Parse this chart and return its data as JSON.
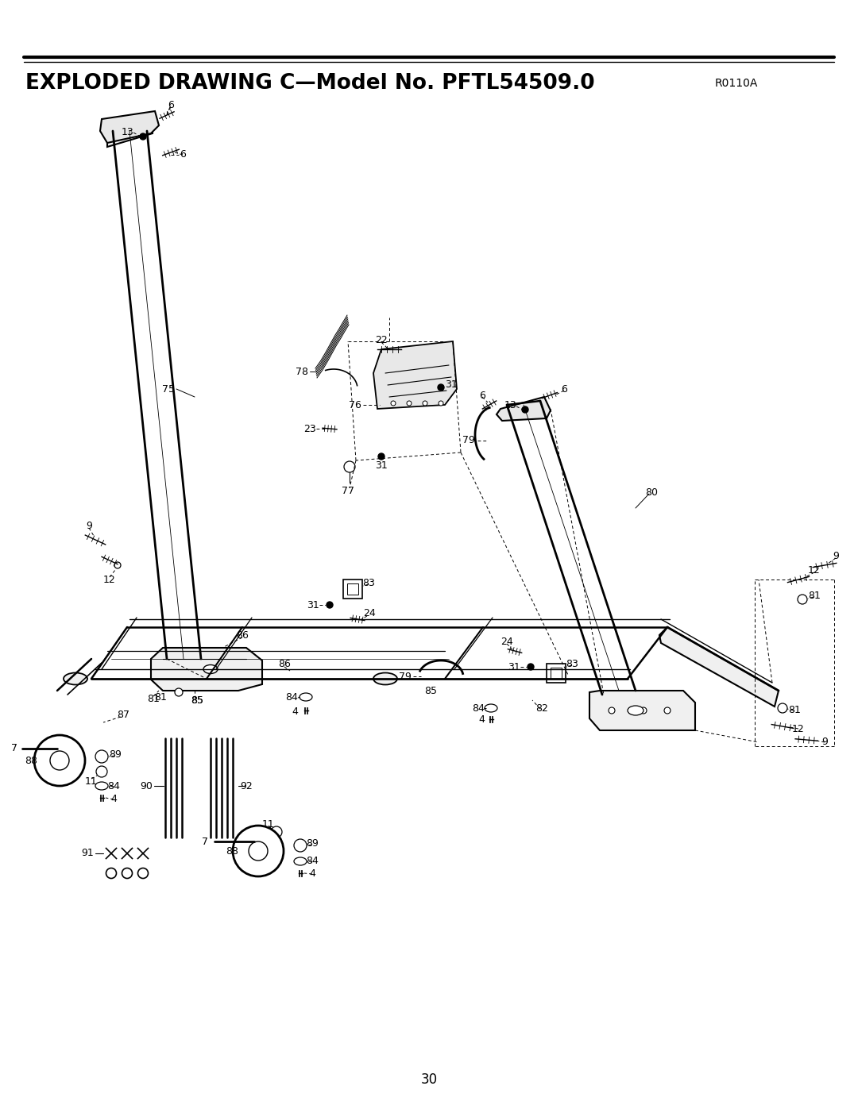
{
  "title": "EXPLODED DRAWING C—Model No. PFTL54509.0",
  "subtitle": "R0110A",
  "page_number": "30",
  "bg_color": "#ffffff",
  "title_fontsize": 19,
  "subtitle_fontsize": 10,
  "page_fontsize": 12,
  "lw_thick": 1.8,
  "lw_med": 1.2,
  "lw_thin": 0.8,
  "lw_dash": 0.7
}
